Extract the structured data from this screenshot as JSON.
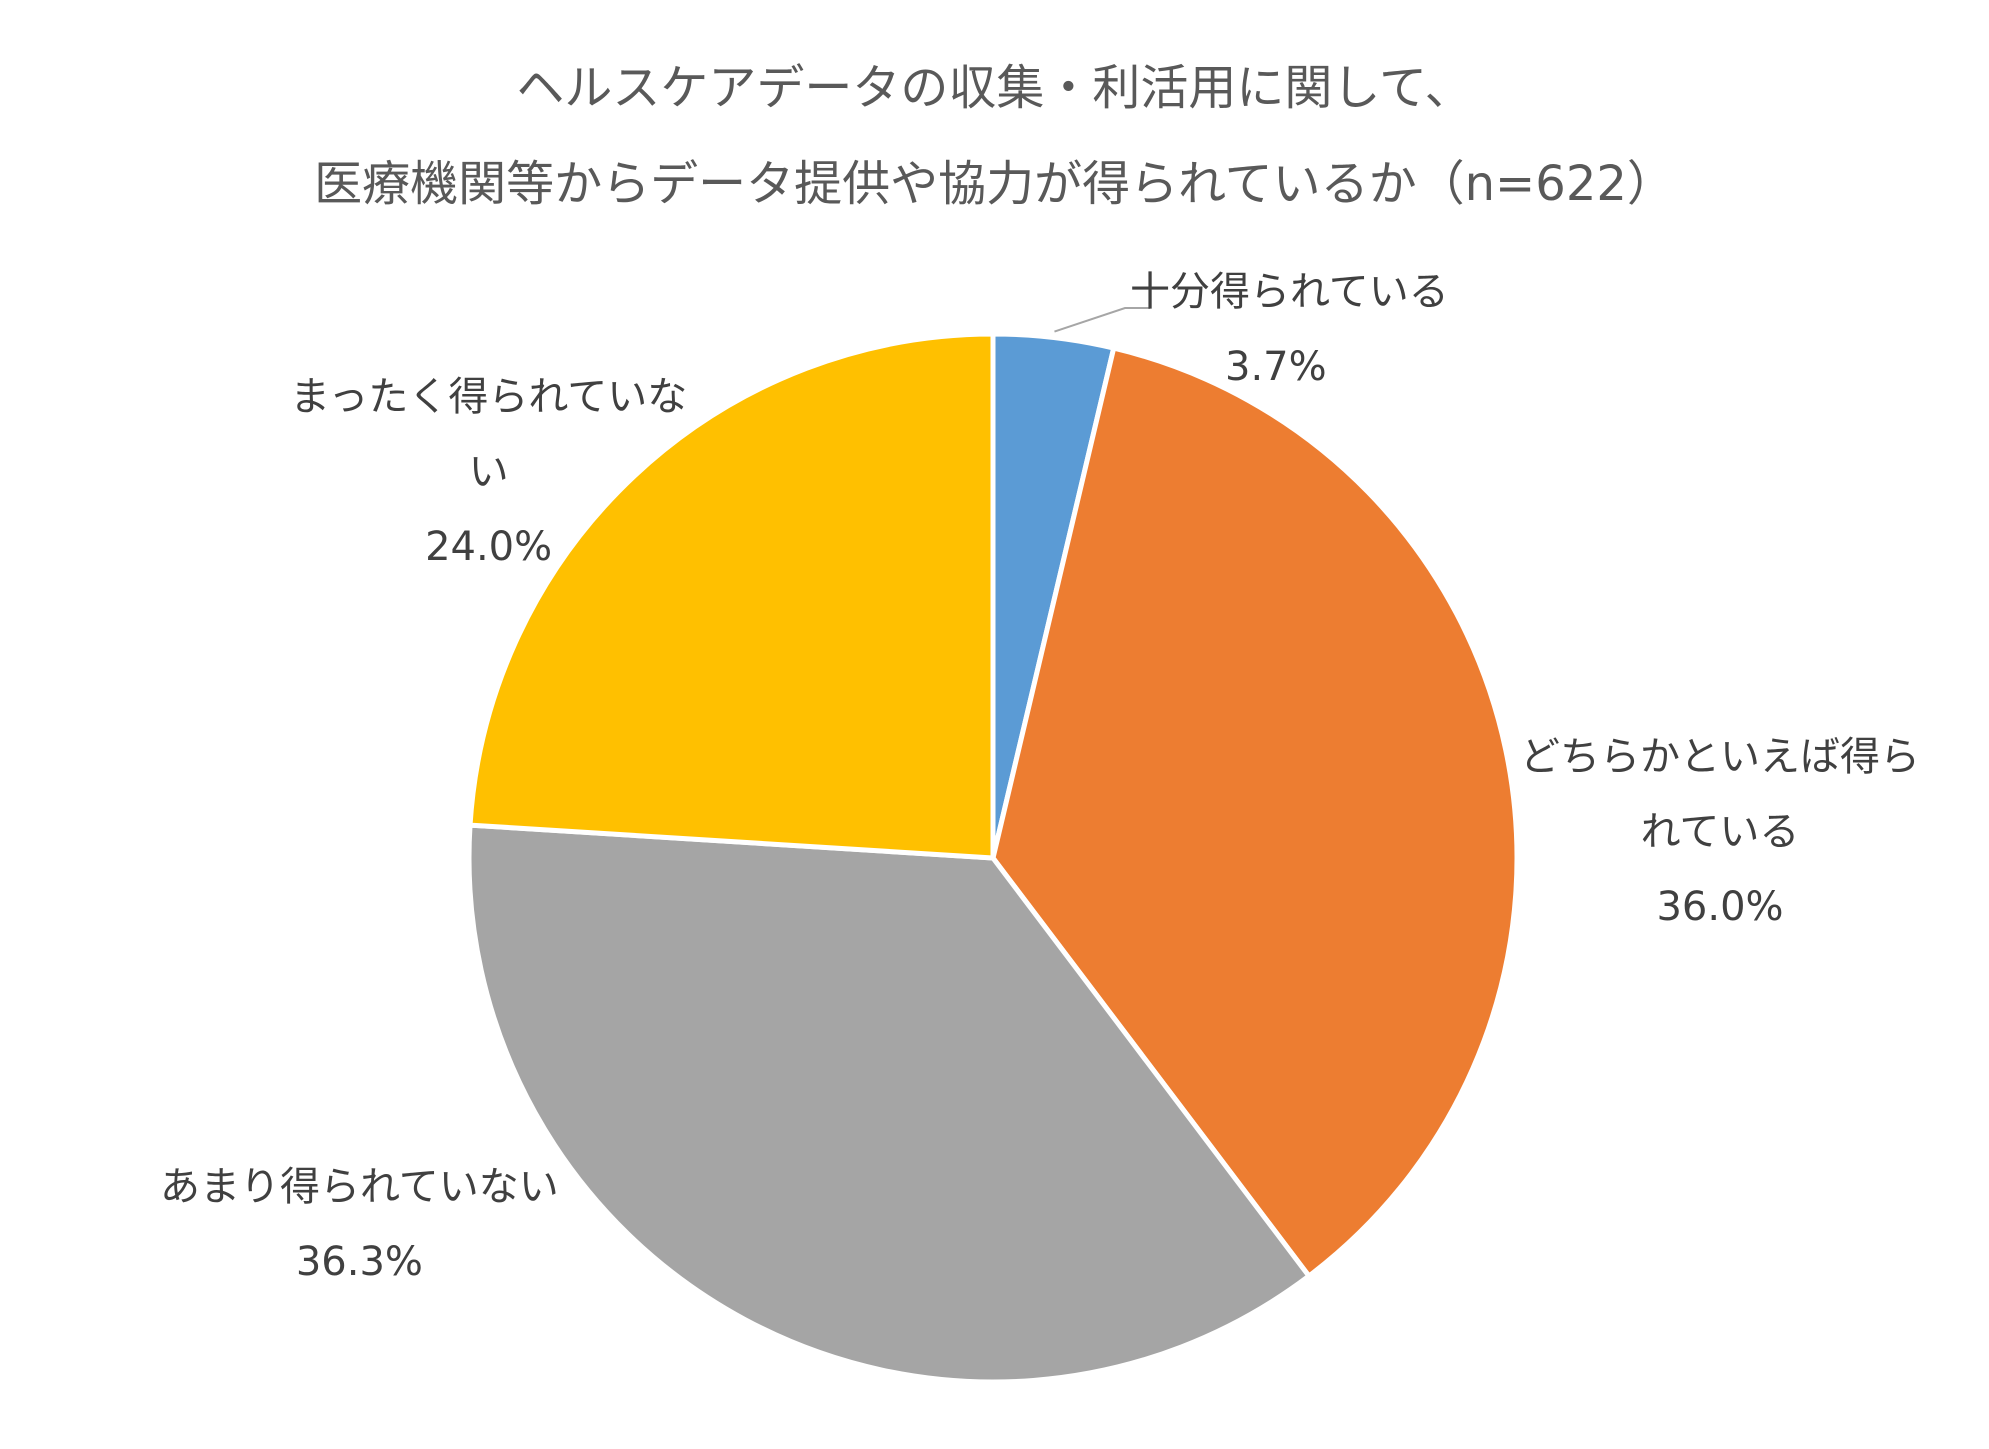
{
  "title": {
    "line1": "ヘルスケアデータの収集・利活用に関して、",
    "line2": "医療機関等からデータ提供や協力が得られているか（n=622）"
  },
  "chart_data": {
    "type": "pie",
    "title": "ヘルスケアデータの収集・利活用に関して、医療機関等からデータ提供や協力が得られているか（n=622）",
    "start_angle_deg": 0,
    "direction": "clockwise",
    "legend": "none",
    "slices": [
      {
        "label": "十分得られている",
        "label_lines": [
          "十分得られている"
        ],
        "value": 3.7,
        "value_label": "3.7%",
        "color": "#5B9BD5"
      },
      {
        "label": "どちらかといえば得られている",
        "label_lines": [
          "どちらかといえば得ら",
          "れている"
        ],
        "value": 36.0,
        "value_label": "36.0%",
        "color": "#ED7D31"
      },
      {
        "label": "あまり得られていない",
        "label_lines": [
          "あまり得られていない"
        ],
        "value": 36.3,
        "value_label": "36.3%",
        "color": "#A5A5A5"
      },
      {
        "label": "まったく得られていない",
        "label_lines": [
          "まったく得られていな",
          "い"
        ],
        "value": 24.0,
        "value_label": "24.0%",
        "color": "#FFC000"
      }
    ]
  }
}
